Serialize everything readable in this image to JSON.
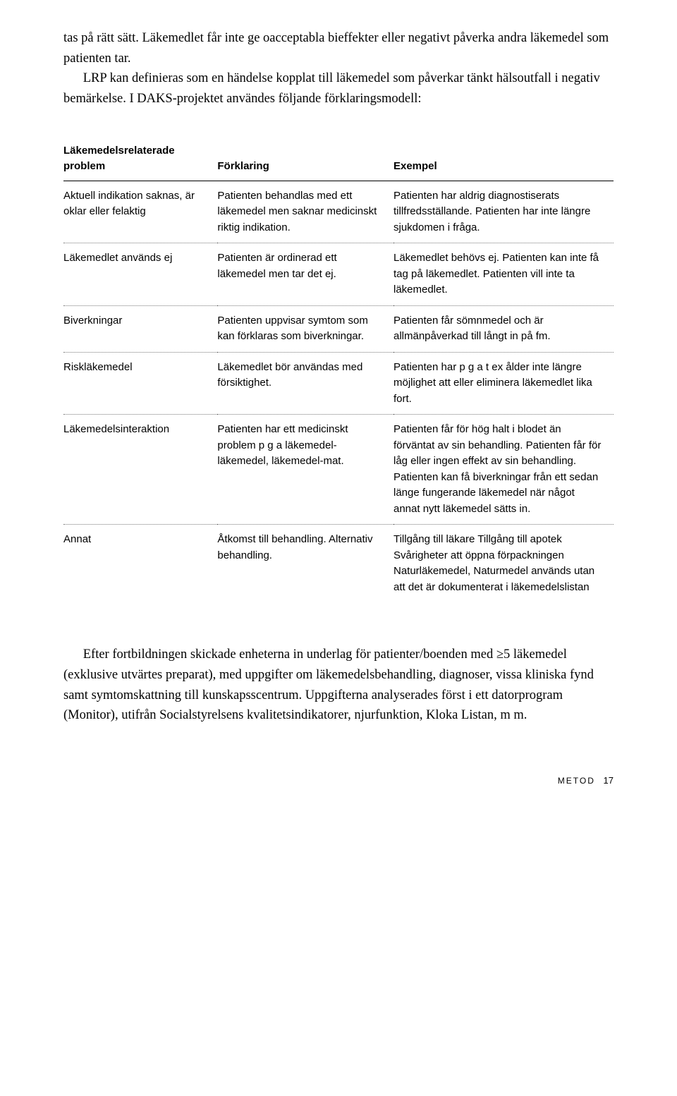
{
  "intro": {
    "p1": "tas på rätt sätt. Läkemedlet får inte ge oacceptabla bieffekter eller negativt påverka andra läkemedel som patienten tar.",
    "p2": "LRP kan definieras som en händelse kopplat till läkemedel som påverkar tänkt hälsoutfall i negativ bemärkelse. I DAKS-projektet användes följande förklaringsmodell:"
  },
  "table": {
    "headers": {
      "c1a": "Läkemedelsrelaterade",
      "c1b": "problem",
      "c2": "Förklaring",
      "c3": "Exempel"
    },
    "rows": [
      {
        "c1": "Aktuell indikation saknas, är oklar eller felaktig",
        "c2": "Patienten behandlas med ett läkemedel men saknar medicinskt riktig indikation.",
        "c3": "Patienten har aldrig diagnostiserats tillfredsställande. Patienten har inte längre sjukdomen i fråga."
      },
      {
        "c1": "Läkemedlet används ej",
        "c2": "Patienten är ordinerad ett läkemedel men tar det ej.",
        "c3": "Läkemedlet behövs ej. Patienten kan inte få tag på läkemedlet. Patienten vill inte ta läkemedlet."
      },
      {
        "c1": "Biverkningar",
        "c2": "Patienten uppvisar symtom som kan förklaras som biverkningar.",
        "c3": "Patienten får sömnmedel och är allmänpåverkad till långt in på fm."
      },
      {
        "c1": "Riskläkemedel",
        "c2": "Läkemedlet bör användas med försiktighet.",
        "c3": "Patienten har p g a t ex ålder inte längre möjlighet att eller eliminera läkemedlet lika fort."
      },
      {
        "c1": "Läkemedelsinteraktion",
        "c2": "Patienten har ett medicinskt problem p g a läkemedel-läkemedel, läkemedel-mat.",
        "c3": "Patienten får för hög halt i blodet än förväntat av sin behandling. Patienten får för låg eller ingen effekt av sin behandling. Patienten kan få biverkningar från ett sedan länge fungerande läkemedel när något annat nytt läkemedel sätts in."
      },
      {
        "c1": "Annat",
        "c2": "Åtkomst till behandling. Alternativ behandling.",
        "c3": "Tillgång till läkare Tillgång till apotek Svårigheter att öppna förpackningen Naturläkemedel, Naturmedel används utan att det är dokumenterat i läkemedelslistan"
      }
    ]
  },
  "after": {
    "p1": "Efter fortbildningen skickade enheterna in underlag för patienter/boenden med ≥5 läkemedel (exklusive utvärtes preparat), med uppgifter om läkemedelsbehandling, diagnoser, vissa kliniska fynd samt symtomskattning till kunskapsscentrum. Uppgifterna analyserades först i ett datorprogram (Monitor), utifrån Socialstyrelsens kvalitetsindikatorer, njurfunktion, Kloka Listan, m m."
  },
  "footer": {
    "label": "METOD",
    "page": "17"
  }
}
